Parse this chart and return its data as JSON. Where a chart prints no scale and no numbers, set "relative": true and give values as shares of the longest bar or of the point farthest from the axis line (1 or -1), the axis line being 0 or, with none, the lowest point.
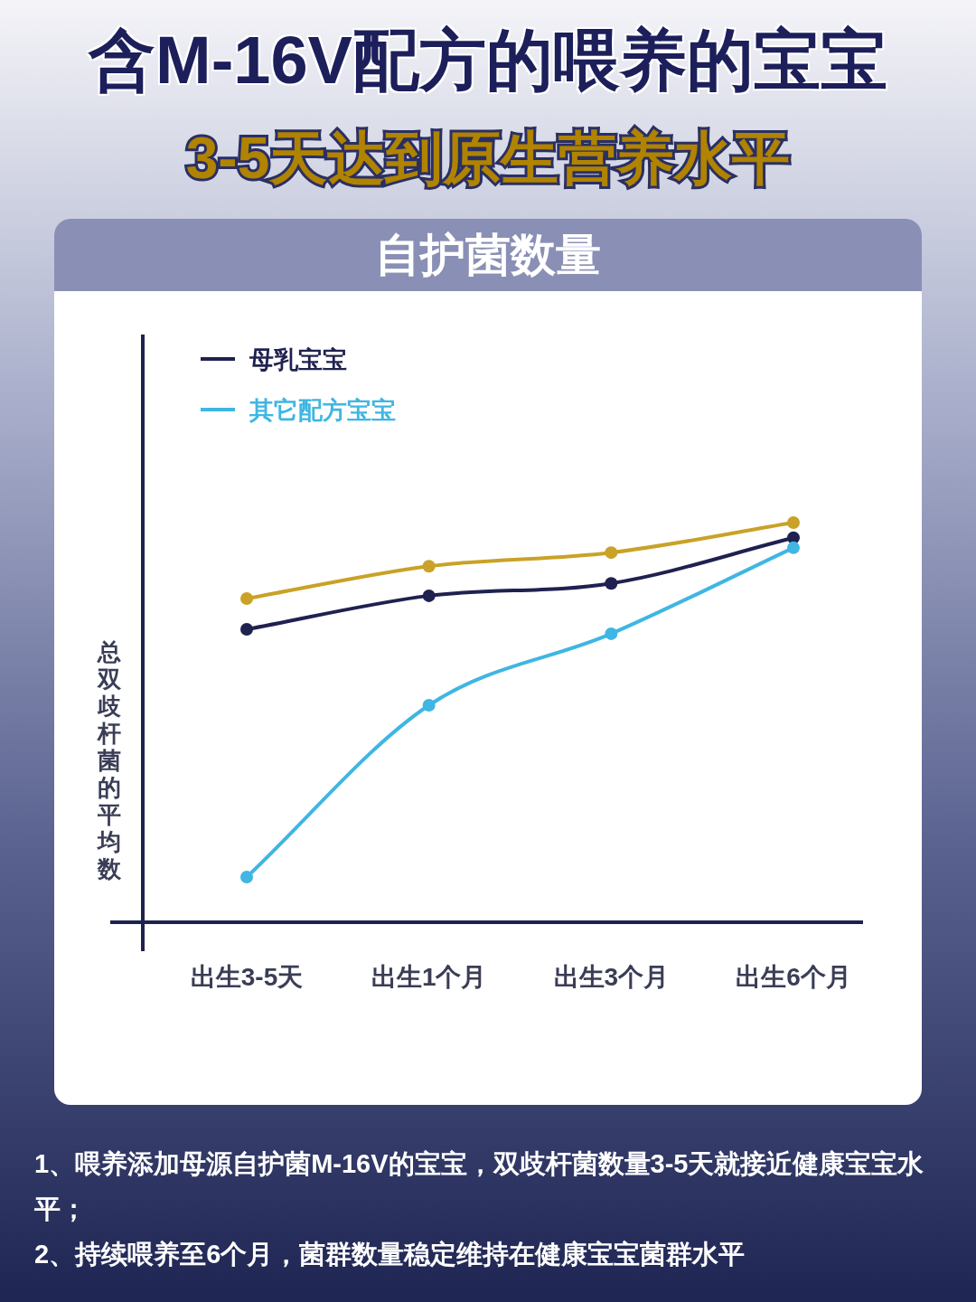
{
  "chart_data": {
    "type": "line",
    "title": "含M-16V配方的喂养的宝宝",
    "subtitle": "3-5天达到原生营养水平",
    "ylabel": "总双歧杆菌的平均数",
    "categories": [
      "出生3-5天",
      "出生1个月",
      "出生3个月",
      "出生6个月"
    ],
    "relative": true,
    "marker": "circle",
    "line_style": "solid",
    "legend": "top left",
    "series": [
      {
        "color": "#c9a227",
        "values": [
          0.81,
          0.891,
          0.925,
          1.0
        ]
      },
      {
        "name": "母乳宝宝",
        "color": "#1f2150",
        "values": [
          0.733,
          0.817,
          0.848,
          0.962
        ]
      },
      {
        "name": "其它配方宝宝",
        "color": "#3fb6e3",
        "values": [
          0.113,
          0.543,
          0.722,
          0.937
        ]
      }
    ],
    "annotations": [
      "自护菌数量",
      "1、喂养添加母源自护菌M-16V的宝宝，双歧杆菌数量3-5天就接近健康宝宝水平；",
      "2、持续喂养至6个月，菌群数量稳定维持在健康宝宝菌群水平"
    ]
  }
}
